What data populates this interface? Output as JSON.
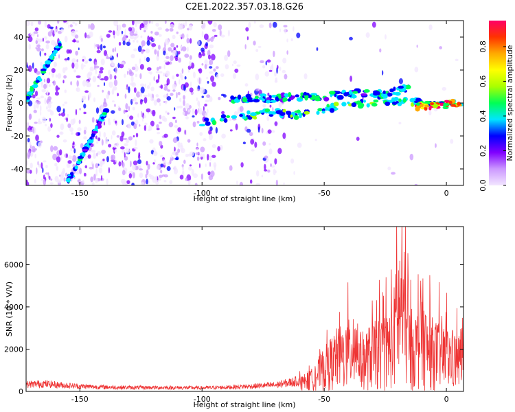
{
  "title": "C2E1.2022.357.03.18.G26",
  "chart_data": [
    {
      "type": "heatmap",
      "name": "spectrogram",
      "xlabel": "Height of straight line (km)",
      "ylabel": "Frequency (Hz)",
      "xlim": [
        -172,
        7
      ],
      "ylim": [
        -50,
        50
      ],
      "xticks": [
        -150,
        -100,
        -50,
        0
      ],
      "yticks": [
        -40,
        -20,
        0,
        20,
        40
      ],
      "colorbar": {
        "label": "Normalized spectral amplitude",
        "range": [
          0.0,
          0.95
        ],
        "ticks": [
          0.0,
          0.2,
          0.4,
          0.6,
          0.8
        ],
        "colormap": [
          "#f2e6ff",
          "#cc99ff",
          "#8000ff",
          "#0000ff",
          "#00e5ff",
          "#00ff55",
          "#aaff00",
          "#ffff00",
          "#ffaa00",
          "#ff3300",
          "#ff0066"
        ]
      },
      "features": [
        {
          "kind": "streak",
          "x": [
            -172,
            -158
          ],
          "y": [
            2,
            36
          ],
          "amplitude": 0.45
        },
        {
          "kind": "streak",
          "x": [
            -155,
            -139
          ],
          "y": [
            -48,
            -4
          ],
          "amplitude": 0.4
        },
        {
          "kind": "trace",
          "x": [
            -100,
            -85,
            -70,
            -60,
            -45,
            -30,
            -15,
            -5,
            0,
            7
          ],
          "y": [
            -12,
            -8,
            -6,
            -7,
            -2,
            0,
            1,
            -1,
            -1,
            0
          ],
          "amplitude": 0.5
        },
        {
          "kind": "trace",
          "x": [
            -88,
            -70,
            -50,
            -35,
            -25,
            -15
          ],
          "y": [
            2,
            3,
            4,
            6,
            5,
            10
          ],
          "amplitude": 0.45
        },
        {
          "kind": "peak",
          "x": [
            -12,
            6
          ],
          "y": [
            -2,
            0
          ],
          "amplitude": 0.95
        }
      ]
    },
    {
      "type": "line",
      "name": "snr",
      "xlabel": "Height of straight line (km)",
      "ylabel": "SNR (10 * V/V)",
      "xlim": [
        -172,
        7
      ],
      "ylim": [
        0,
        7800
      ],
      "xticks": [
        -150,
        -100,
        -50,
        0
      ],
      "yticks": [
        0,
        2000,
        4000,
        6000
      ],
      "color": "#ee3333",
      "envelope": {
        "x": [
          -172,
          -165,
          -155,
          -145,
          -130,
          -115,
          -100,
          -90,
          -80,
          -70,
          -65,
          -60,
          -55,
          -50,
          -45,
          -40,
          -37,
          -35,
          -30,
          -25,
          -22,
          -20,
          -18,
          -15,
          -12,
          -10,
          -8,
          -5,
          -2,
          2,
          5,
          7
        ],
        "y": [
          450,
          500,
          380,
          300,
          250,
          250,
          230,
          270,
          330,
          420,
          550,
          700,
          1100,
          2100,
          3000,
          3400,
          4300,
          2800,
          3300,
          3600,
          4200,
          7000,
          7500,
          4000,
          3800,
          5800,
          3600,
          3500,
          3200,
          3000,
          2700,
          3900
        ]
      }
    }
  ]
}
